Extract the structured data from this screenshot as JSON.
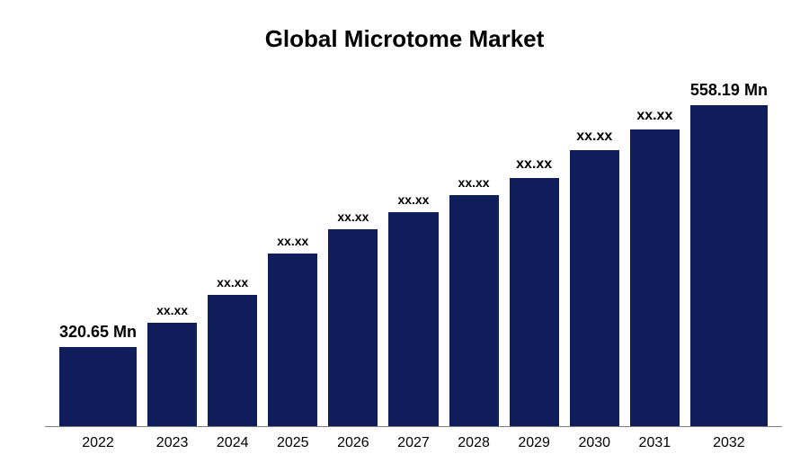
{
  "chart": {
    "type": "bar",
    "title": "Global Microtome Market",
    "title_fontsize": 26,
    "title_color": "#000000",
    "background_color": "#ffffff",
    "bar_color": "#0f1e5a",
    "axis_color": "#808080",
    "x_label_fontsize": 16,
    "x_label_color": "#000000",
    "bar_label_color": "#000000",
    "categories": [
      "2022",
      "2023",
      "2024",
      "2025",
      "2026",
      "2027",
      "2028",
      "2029",
      "2030",
      "2031",
      "2032"
    ],
    "labels": [
      "320.65 Mn",
      "xx.xx",
      "xx.xx",
      "xx.xx",
      "xx.xx",
      "xx.xx",
      "xx.xx",
      "xx.xx",
      "xx.xx",
      "xx.xx",
      "558.19 Mn"
    ],
    "label_fontsizes": [
      18,
      14,
      14,
      14,
      14,
      14,
      14,
      16,
      16,
      16,
      18
    ],
    "heights_pct": [
      23,
      30,
      38,
      50,
      57,
      62,
      67,
      72,
      80,
      86,
      93
    ]
  }
}
